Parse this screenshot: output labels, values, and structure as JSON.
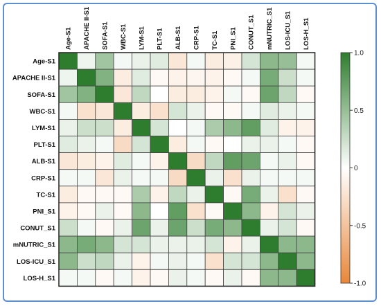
{
  "chart_data": {
    "type": "heatmap",
    "title": "",
    "columns": [
      "Age-S1",
      "APACHE II-S1",
      "SOFA-S1",
      "WBC-S1",
      "LYM-S1",
      "PLT-S1",
      "ALB-S1",
      "CRP-S1",
      "TC-S1",
      "PNI_S1",
      "CONUT_S1",
      "mNUTRIC_S1",
      "LOS-ICU_S1",
      "LOS-H_S1"
    ],
    "rows": [
      "Age-S1",
      "APACHE II-S1",
      "SOFA-S1",
      "WBC-S1",
      "LYM-S1",
      "PLT-S1",
      "ALB-S1",
      "CRP-S1",
      "TC-S1",
      "PNI_S1",
      "CONUT_S1",
      "mNUTRIC_S1",
      "LOS-ICU_S1",
      "LOS-H_S1"
    ],
    "values": [
      [
        1.0,
        0.08,
        0.45,
        0.05,
        0.1,
        0.15,
        -0.2,
        0.05,
        -0.15,
        -0.12,
        0.2,
        0.55,
        0.5,
        0.05
      ],
      [
        0.08,
        1.0,
        0.6,
        -0.15,
        0.15,
        -0.05,
        -0.1,
        -0.08,
        -0.1,
        -0.05,
        0.05,
        0.65,
        0.25,
        0.05
      ],
      [
        0.45,
        0.6,
        1.0,
        -0.2,
        0.3,
        0.0,
        -0.15,
        -0.15,
        -0.1,
        0.05,
        -0.05,
        0.7,
        0.3,
        -0.05
      ],
      [
        0.05,
        -0.25,
        -0.2,
        1.0,
        -0.15,
        -0.25,
        0.2,
        0.1,
        -0.05,
        -0.05,
        0.05,
        0.15,
        0.1,
        0.05
      ],
      [
        0.1,
        0.25,
        0.25,
        -0.15,
        1.0,
        0.2,
        0.0,
        0.05,
        0.4,
        0.55,
        0.75,
        0.15,
        -0.1,
        -0.1
      ],
      [
        0.15,
        0.1,
        0.05,
        -0.3,
        0.2,
        1.0,
        -0.15,
        0.05,
        -0.05,
        0.0,
        0.1,
        0.1,
        0.05,
        -0.05
      ],
      [
        -0.2,
        -0.15,
        -0.1,
        0.15,
        0.05,
        -0.1,
        1.0,
        -0.3,
        0.3,
        0.75,
        0.7,
        0.05,
        0.1,
        -0.05
      ],
      [
        0.05,
        0.05,
        -0.2,
        0.1,
        0.05,
        0.05,
        -0.3,
        1.0,
        0.1,
        -0.25,
        0.1,
        0.05,
        0.05,
        0.05
      ],
      [
        -0.15,
        -0.05,
        -0.05,
        -0.05,
        0.4,
        -0.1,
        0.3,
        0.1,
        1.0,
        -0.05,
        0.65,
        0.1,
        -0.25,
        -0.05
      ],
      [
        -0.1,
        -0.05,
        0.1,
        -0.05,
        0.55,
        0.0,
        0.75,
        -0.25,
        -0.05,
        1.0,
        0.55,
        -0.1,
        0.2,
        0.1
      ],
      [
        0.25,
        0.05,
        -0.05,
        0.1,
        0.7,
        0.1,
        0.7,
        0.25,
        0.65,
        0.55,
        1.0,
        0.1,
        0.2,
        -0.05
      ],
      [
        0.55,
        0.65,
        0.55,
        0.2,
        0.2,
        0.1,
        0.1,
        0.1,
        0.2,
        -0.1,
        0.1,
        1.0,
        0.55,
        0.55
      ],
      [
        0.55,
        0.25,
        0.3,
        0.1,
        -0.1,
        0.05,
        0.1,
        0.05,
        -0.25,
        0.2,
        0.2,
        0.55,
        1.0,
        0.55
      ],
      [
        0.05,
        0.05,
        -0.05,
        0.05,
        -0.1,
        -0.05,
        0.1,
        0.05,
        -0.05,
        0.1,
        -0.05,
        0.55,
        0.55,
        1.0
      ]
    ],
    "colorbar": {
      "min": -1.0,
      "max": 1.0,
      "ticks": [
        "1.0",
        "0.5",
        "0",
        "-0.5",
        "-1.0"
      ],
      "tick_values": [
        1.0,
        0.5,
        0,
        -0.5,
        -1.0
      ]
    },
    "colors": {
      "positive": "#2e7d2e",
      "neutral": "#ffffff",
      "negative": "#e8873a"
    },
    "grid": true,
    "legend": "right"
  }
}
